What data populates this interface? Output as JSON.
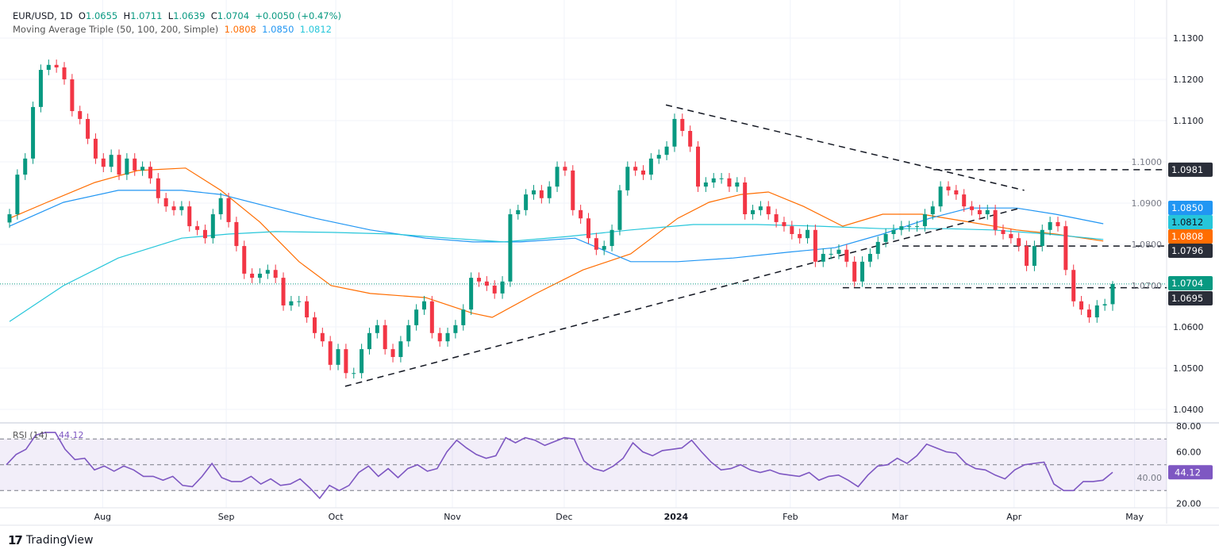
{
  "header": {
    "symbol": "EUR/USD, 1D",
    "open_label": "O",
    "open": "1.0655",
    "high_label": "H",
    "high": "1.0711",
    "low_label": "L",
    "low": "1.0639",
    "close_label": "C",
    "close": "1.0704",
    "change": "+0.0050 (+0.47%)",
    "indicator": "Moving Average Triple (50, 100, 200, Simple)",
    "ma50": "1.0808",
    "ma100": "1.0850",
    "ma200": "1.0812"
  },
  "footer": {
    "brand": "TradingView",
    "logo": "TV"
  },
  "colors": {
    "up": "#089981",
    "down": "#f23645",
    "ma50": "#ff6d00",
    "ma100": "#2196f3",
    "ma200": "#26c6da",
    "rsi": "#7e57c2",
    "level": "#2a2e39"
  },
  "chart_data": {
    "type": "candlestick",
    "title": "EUR/USD, 1D",
    "ylim": [
      1.036,
      1.1335
    ],
    "y_ticks": [
      "1.1300",
      "1.1200",
      "1.1100",
      "1.1000",
      "1.0900",
      "1.0800",
      "1.0700",
      "1.0600",
      "1.0500",
      "1.0400"
    ],
    "x_ticks": [
      {
        "label": "Aug",
        "index": 11.9
      },
      {
        "label": "Sep",
        "index": 27.7
      },
      {
        "label": "Oct",
        "index": 41.7
      },
      {
        "label": "Nov",
        "index": 56.6
      },
      {
        "label": "Dec",
        "index": 70.9
      },
      {
        "label": "2024",
        "index": 85.2
      },
      {
        "label": "Feb",
        "index": 99.8
      },
      {
        "label": "Mar",
        "index": 113.8
      },
      {
        "label": "Apr",
        "index": 128.4
      },
      {
        "label": "May",
        "index": 143.8
      }
    ],
    "closes": [
      1.0873,
      1.0969,
      1.1008,
      1.1133,
      1.1223,
      1.1235,
      1.1229,
      1.12,
      1.1123,
      1.1104,
      1.1056,
      1.1008,
      1.0988,
      1.1017,
      1.0969,
      1.1008,
      1.0979,
      1.0988,
      1.096,
      1.0912,
      1.0892,
      1.0883,
      1.0892,
      1.0844,
      1.0835,
      1.0815,
      1.0873,
      1.0912,
      1.0854,
      1.0796,
      1.0729,
      1.0719,
      1.0729,
      1.0738,
      1.0719,
      1.0652,
      1.0662,
      1.0662,
      1.0623,
      1.0585,
      1.0565,
      1.0508,
      1.0546,
      1.0488,
      1.0488,
      1.0546,
      1.0585,
      1.0604,
      1.0546,
      1.0527,
      1.0565,
      1.0604,
      1.0642,
      1.0662,
      1.0585,
      1.0565,
      1.0585,
      1.0604,
      1.0642,
      1.0719,
      1.071,
      1.07,
      1.0681,
      1.071,
      1.0873,
      1.0883,
      1.0921,
      1.0931,
      1.0912,
      1.094,
      1.0988,
      1.0979,
      1.0883,
      1.0863,
      1.0815,
      1.0787,
      1.0796,
      1.0835,
      1.0931,
      1.0988,
      1.0979,
      1.0969,
      1.1008,
      1.1017,
      1.1037,
      1.1104,
      1.1075,
      1.1037,
      1.094,
      1.095,
      1.096,
      1.096,
      1.094,
      1.095,
      1.0873,
      1.0883,
      1.0892,
      1.0873,
      1.0854,
      1.0844,
      1.0825,
      1.0815,
      1.0835,
      1.0758,
      1.0777,
      1.0777,
      1.0787,
      1.0758,
      1.071,
      1.0758,
      1.0777,
      1.0806,
      1.0825,
      1.0835,
      1.0844,
      1.0844,
      1.0844,
      1.0873,
      1.0892,
      1.094,
      1.0931,
      1.0921,
      1.0892,
      1.0883,
      1.0873,
      1.0883,
      1.0835,
      1.0825,
      1.0815,
      1.0796,
      1.0748,
      1.0796,
      1.0835,
      1.0854,
      1.0844,
      1.0738,
      1.0662,
      1.0642,
      1.0623,
      1.0652,
      1.0655,
      1.0704
    ],
    "last_candle": {
      "open": 1.0655,
      "high": 1.0711,
      "low": 1.0639,
      "close": 1.0704
    },
    "moving_averages": [
      {
        "name": "MA 50",
        "value_label": "1.0808",
        "color_key": "ma50",
        "points": [
          [
            0,
            1.0863
          ],
          [
            4.8,
            1.0902
          ],
          [
            10.9,
            1.095
          ],
          [
            16.4,
            1.0979
          ],
          [
            22.5,
            1.0985
          ],
          [
            27,
            1.0931
          ],
          [
            32,
            1.0854
          ],
          [
            37,
            1.0758
          ],
          [
            41.1,
            1.07
          ],
          [
            46.1,
            1.0681
          ],
          [
            53.2,
            1.0671
          ],
          [
            59.2,
            1.0633
          ],
          [
            61.7,
            1.0623
          ],
          [
            67.3,
            1.0681
          ],
          [
            73.3,
            1.0738
          ],
          [
            79.4,
            1.0777
          ],
          [
            85.4,
            1.0863
          ],
          [
            89.4,
            1.0902
          ],
          [
            93.5,
            1.0921
          ],
          [
            97,
            1.0927
          ],
          [
            101.5,
            1.0892
          ],
          [
            106.5,
            1.0844
          ],
          [
            111.6,
            1.0873
          ],
          [
            116.6,
            1.0873
          ],
          [
            122.7,
            1.0854
          ],
          [
            128.7,
            1.0835
          ],
          [
            133.7,
            1.0825
          ],
          [
            139.8,
            1.0808
          ]
        ]
      },
      {
        "name": "MA 100",
        "value_label": "1.0850",
        "color_key": "ma100",
        "points": [
          [
            0,
            1.0844
          ],
          [
            6.9,
            1.0902
          ],
          [
            13.9,
            1.0931
          ],
          [
            22,
            1.0931
          ],
          [
            27,
            1.0921
          ],
          [
            33,
            1.0892
          ],
          [
            39.1,
            1.0863
          ],
          [
            46.1,
            1.0835
          ],
          [
            53.2,
            1.0815
          ],
          [
            59.2,
            1.0806
          ],
          [
            65.3,
            1.0806
          ],
          [
            72.3,
            1.0815
          ],
          [
            79.4,
            1.0758
          ],
          [
            85.4,
            1.0758
          ],
          [
            92.5,
            1.0767
          ],
          [
            99.5,
            1.0781
          ],
          [
            105.5,
            1.0792
          ],
          [
            111.6,
            1.0825
          ],
          [
            117.6,
            1.0863
          ],
          [
            122.7,
            1.0888
          ],
          [
            128.7,
            1.0888
          ],
          [
            133.7,
            1.0873
          ],
          [
            139.8,
            1.085
          ]
        ]
      },
      {
        "name": "MA 200",
        "value_label": "1.0812",
        "color_key": "ma200",
        "points": [
          [
            0,
            1.0613
          ],
          [
            6.9,
            1.07
          ],
          [
            13.9,
            1.0767
          ],
          [
            22,
            1.0815
          ],
          [
            28,
            1.0825
          ],
          [
            34,
            1.0831
          ],
          [
            41.1,
            1.0829
          ],
          [
            49.1,
            1.0825
          ],
          [
            56.2,
            1.0815
          ],
          [
            63.2,
            1.0806
          ],
          [
            71.3,
            1.0819
          ],
          [
            79.4,
            1.0835
          ],
          [
            87.4,
            1.0848
          ],
          [
            95.5,
            1.0848
          ],
          [
            103.5,
            1.0844
          ],
          [
            111.6,
            1.0838
          ],
          [
            119.6,
            1.0838
          ],
          [
            125.7,
            1.0835
          ],
          [
            132.7,
            1.0825
          ],
          [
            139.8,
            1.0812
          ]
        ]
      }
    ],
    "trendlines": [
      {
        "name": "rising-support",
        "from": [
          42.9,
          1.0456
        ],
        "to": [
          129.2,
          1.0888
        ]
      },
      {
        "name": "falling-resistance",
        "from": [
          83.9,
          1.1138
        ],
        "to": [
          129.7,
          1.0931
        ]
      }
    ],
    "horizontal_levels": [
      {
        "price": 1.0981,
        "label": "1.0981",
        "from_index": 118.1
      },
      {
        "price": 1.0796,
        "label": "1.0796",
        "from_index": 114.1
      },
      {
        "price": 1.0695,
        "label": "1.0695",
        "from_index": 106.5
      }
    ],
    "last_price_label": "1.0704",
    "rsi": {
      "title": "RSI (14)",
      "value_label": "44.12",
      "ylim": [
        10,
        85
      ],
      "levels": [
        70,
        50,
        30
      ],
      "y_ticks": [
        "80.00",
        "60.00",
        "40.00",
        "20.00"
      ],
      "values": [
        50,
        58,
        62,
        73,
        75,
        75,
        62,
        54,
        55,
        46,
        49,
        45,
        49,
        46,
        41,
        41,
        38,
        41,
        34,
        33,
        41,
        51,
        40,
        37,
        37,
        41,
        35,
        39,
        34,
        35,
        39,
        32,
        24,
        34,
        30,
        34,
        44,
        49,
        41,
        47,
        40,
        47,
        50,
        45,
        47,
        60,
        69,
        63,
        58,
        55,
        57,
        71,
        67,
        71,
        69,
        65,
        68,
        71,
        70,
        53,
        47,
        45,
        49,
        55,
        67,
        60,
        57,
        61,
        62,
        63,
        69,
        60,
        52,
        46,
        47,
        50,
        46,
        44,
        46,
        43,
        42,
        41,
        44,
        38,
        41,
        42,
        38,
        33,
        42,
        49,
        50,
        55,
        51,
        57,
        66,
        63,
        60,
        59,
        51,
        47,
        46,
        42,
        39,
        46,
        50,
        51,
        52,
        35,
        30,
        30,
        37,
        37,
        38,
        44.12
      ]
    }
  }
}
